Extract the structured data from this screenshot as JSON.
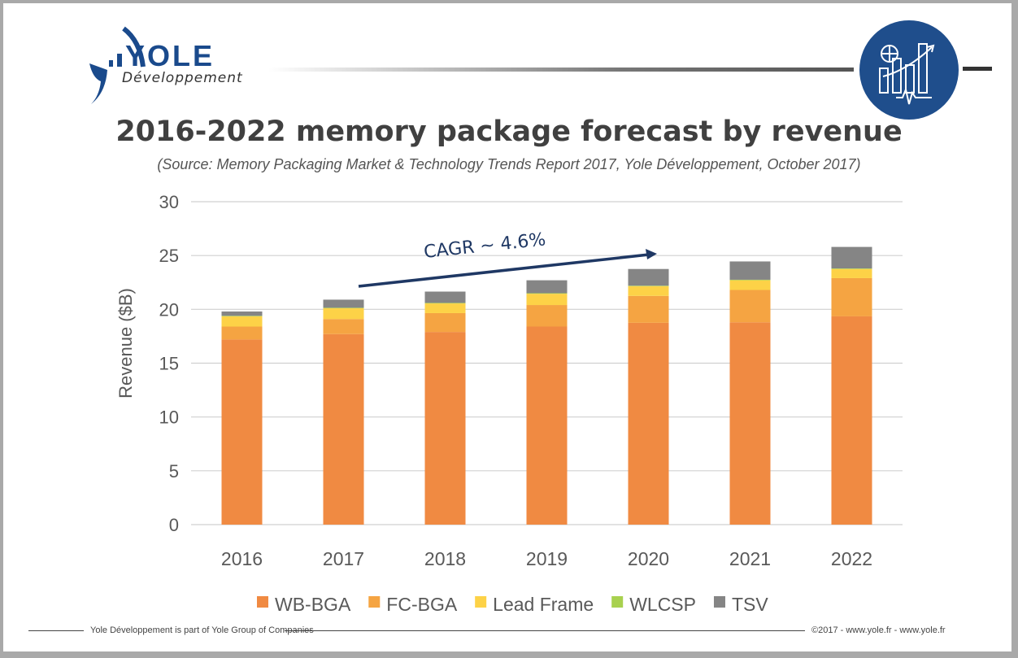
{
  "header": {
    "logo_text": "YOLE",
    "logo_subtext": "Développement",
    "badge_icon": "chart-growth-icon"
  },
  "chart_data": {
    "type": "bar",
    "stacked": true,
    "title": "2016-2022 memory package forecast by revenue",
    "subtitle": "(Source: Memory Packaging Market & Technology Trends Report 2017, Yole Développement, October 2017)",
    "xlabel": "",
    "ylabel": "Revenue ($B)",
    "ylim": [
      0,
      30
    ],
    "yticks": [
      0,
      5,
      10,
      15,
      20,
      25,
      30
    ],
    "grid": true,
    "legend_position": "bottom",
    "categories": [
      "2016",
      "2017",
      "2018",
      "2019",
      "2020",
      "2021",
      "2022"
    ],
    "series": [
      {
        "name": "WB-BGA",
        "color": "#f08a42",
        "values": [
          17.2,
          17.7,
          17.9,
          18.4,
          18.75,
          18.8,
          19.35
        ]
      },
      {
        "name": "FC-BGA",
        "color": "#f5a442",
        "values": [
          1.2,
          1.4,
          1.75,
          2.0,
          2.5,
          3.0,
          3.55
        ]
      },
      {
        "name": "Lead Frame",
        "color": "#fdd247",
        "values": [
          0.95,
          1.0,
          0.9,
          1.05,
          0.9,
          0.9,
          0.85
        ]
      },
      {
        "name": "WLCSP",
        "color": "#a8d14f",
        "values": [
          0.05,
          0.05,
          0.05,
          0.05,
          0.05,
          0.05,
          0.05
        ]
      },
      {
        "name": "TSV",
        "color": "#858585",
        "values": [
          0.4,
          0.75,
          1.05,
          1.2,
          1.55,
          1.7,
          2.0
        ]
      }
    ],
    "annotations": [
      {
        "text": "CAGR ~ 4.6%",
        "from": "2017",
        "to": "2020",
        "color": "#1f3864"
      }
    ]
  },
  "footer": {
    "left": "Yole Développement is part of Yole Group of Companies",
    "right": "©2017 - www.yole.fr - www.yole.fr"
  }
}
